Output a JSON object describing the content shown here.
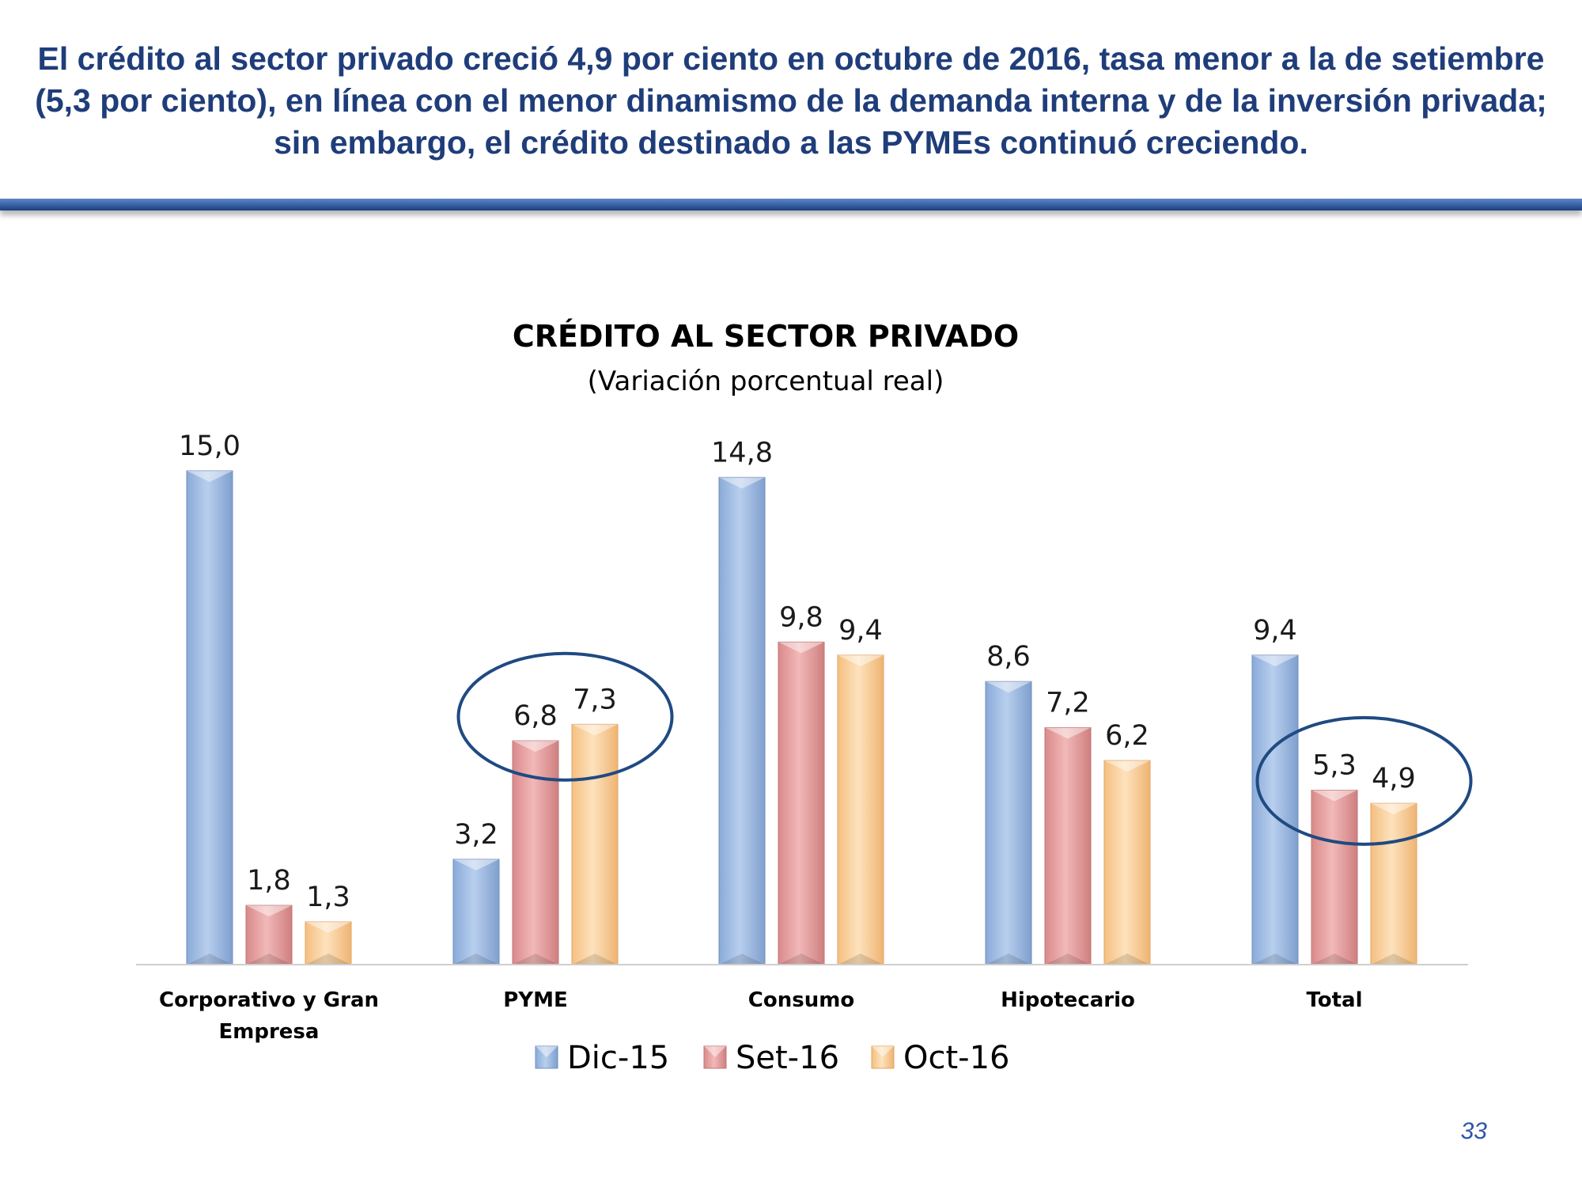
{
  "header": {
    "headline": "El crédito al sector privado creció 4,9 por ciento en octubre de 2016, tasa menor a la de setiembre (5,3 por ciento), en línea con el menor dinamismo de la demanda interna y de la inversión privada; sin embargo, el crédito destinado a las PYMEs continuó creciendo.",
    "rule_color": "#3c68ad"
  },
  "chart_data": {
    "type": "bar",
    "title": "CRÉDITO AL SECTOR PRIVADO",
    "subtitle": "(Variación porcentual real)",
    "categories": [
      [
        "Corporativo y Gran",
        "Empresa"
      ],
      [
        "PYME"
      ],
      [
        "Consumo"
      ],
      [
        "Hipotecario"
      ],
      [
        "Total"
      ]
    ],
    "series": [
      {
        "name": "Dic-15",
        "values": [
          15.0,
          3.2,
          14.8,
          8.6,
          9.4
        ],
        "labels": [
          "15,0",
          "3,2",
          "14,8",
          "8,6",
          "9,4"
        ],
        "color": "#a7c1e6"
      },
      {
        "name": "Set-16",
        "values": [
          1.8,
          6.8,
          9.8,
          7.2,
          5.3
        ],
        "labels": [
          "1,8",
          "6,8",
          "9,8",
          "7,2",
          "5,3"
        ],
        "color": "#e8a3a3"
      },
      {
        "name": "Oct-16",
        "values": [
          1.3,
          7.3,
          9.4,
          6.2,
          4.9
        ],
        "labels": [
          "1,3",
          "7,3",
          "9,4",
          "6,2",
          "4,9"
        ],
        "color": "#fbd3a0"
      }
    ],
    "ylim": [
      0,
      15
    ],
    "grid": false,
    "legend_position": "bottom",
    "highlights": [
      {
        "category": "PYME",
        "series": [
          "Set-16",
          "Oct-16"
        ],
        "shape": "ellipse",
        "color": "#1f4a82"
      },
      {
        "category": "Total",
        "series": [
          "Set-16",
          "Oct-16"
        ],
        "shape": "ellipse",
        "color": "#1f4a82"
      }
    ]
  },
  "footer": {
    "page_number": "33"
  }
}
